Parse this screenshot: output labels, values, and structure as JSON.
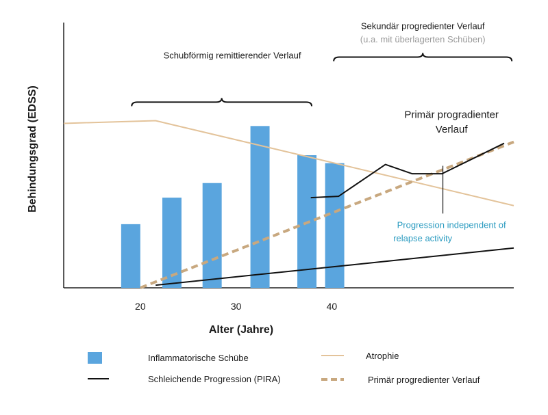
{
  "chart_data": {
    "type": "bar",
    "title": "",
    "xlabel": "Alter (Jahre)",
    "ylabel": "Behindungsgrad (EDSS)",
    "xlim": [
      12,
      59
    ],
    "ylim": [
      0,
      100
    ],
    "x_ticks": [
      {
        "value": 20,
        "label": "20"
      },
      {
        "value": 30,
        "label": "30"
      },
      {
        "value": 40,
        "label": "40"
      }
    ],
    "colors": {
      "bars": "#5aa5de",
      "atrophy": "#e3c39a",
      "pira": "#111111",
      "primary": "#c8a87f",
      "annotation_blue": "#2a9bc0",
      "annotation_gray": "#9a9a9a",
      "axis": "#222222"
    },
    "series": [
      {
        "name": "Inflammatorische Schübe",
        "type": "bar",
        "bar_width": 2.0,
        "x": [
          19.0,
          23.3,
          27.5,
          32.5,
          37.4,
          40.3
        ],
        "values": [
          24,
          34,
          39.5,
          61,
          50,
          47
        ]
      },
      {
        "name": "Atrophie",
        "type": "line",
        "points": [
          [
            12,
            62
          ],
          [
            21.6,
            63
          ],
          [
            59,
            31
          ]
        ]
      },
      {
        "name": "Schleichende Progression (PIRA)",
        "type": "line",
        "points": [
          [
            21.6,
            1
          ],
          [
            59,
            15
          ]
        ]
      },
      {
        "name": "Primär progredienter Verlauf",
        "type": "dashed",
        "points": [
          [
            20,
            0
          ],
          [
            59,
            55
          ]
        ]
      },
      {
        "name": "Primär progredienter Verlauf (Kurve)",
        "type": "line",
        "points": [
          [
            37.8,
            34
          ],
          [
            40.7,
            34.5
          ],
          [
            45.6,
            46.5
          ],
          [
            48.4,
            43
          ],
          [
            51.5,
            43
          ],
          [
            58,
            54.5
          ]
        ]
      }
    ],
    "markers": [
      {
        "name": "pira-divider",
        "x": 51.6,
        "y_range": [
          28,
          46
        ]
      }
    ],
    "braces": [
      {
        "name": "rr",
        "x_range": [
          19.1,
          37.9
        ],
        "y": 70
      },
      {
        "name": "sp",
        "x_range": [
          40.2,
          58.8
        ],
        "y": 87
      }
    ],
    "annotations": [
      {
        "name": "rr-label",
        "text": "Schubförmig remittierender Verlauf",
        "x": 29.6,
        "y": 86.5,
        "color": "dark"
      },
      {
        "name": "sp-label",
        "text": "Sekundär progredienter Verlauf",
        "x": 49.5,
        "y": 97.5,
        "color": "dark"
      },
      {
        "name": "sp-sub",
        "text": "(u.a. mit überlagerten Schüben)",
        "x": 49.5,
        "y": 92.5,
        "color": "gray"
      },
      {
        "name": "pp-label-1",
        "text": "Primär progradienter",
        "x": 52.5,
        "y": 64,
        "color": "dark"
      },
      {
        "name": "pp-label-2",
        "text": "Verlauf",
        "x": 52.5,
        "y": 58.5,
        "color": "dark"
      },
      {
        "name": "pira-label-1",
        "text": "Progression independent of",
        "x": 52.5,
        "y": 22.5,
        "color": "blue"
      },
      {
        "name": "pira-label-2",
        "text": "relapse activity",
        "x": 49.5,
        "y": 17.5,
        "color": "blue"
      }
    ]
  },
  "legend": {
    "items": [
      {
        "label": "Inflammatorische Schübe"
      },
      {
        "label": "Atrophie"
      },
      {
        "label": "Schleichende Progression (PIRA)"
      },
      {
        "label": "Primär progredienter Verlauf"
      }
    ]
  }
}
